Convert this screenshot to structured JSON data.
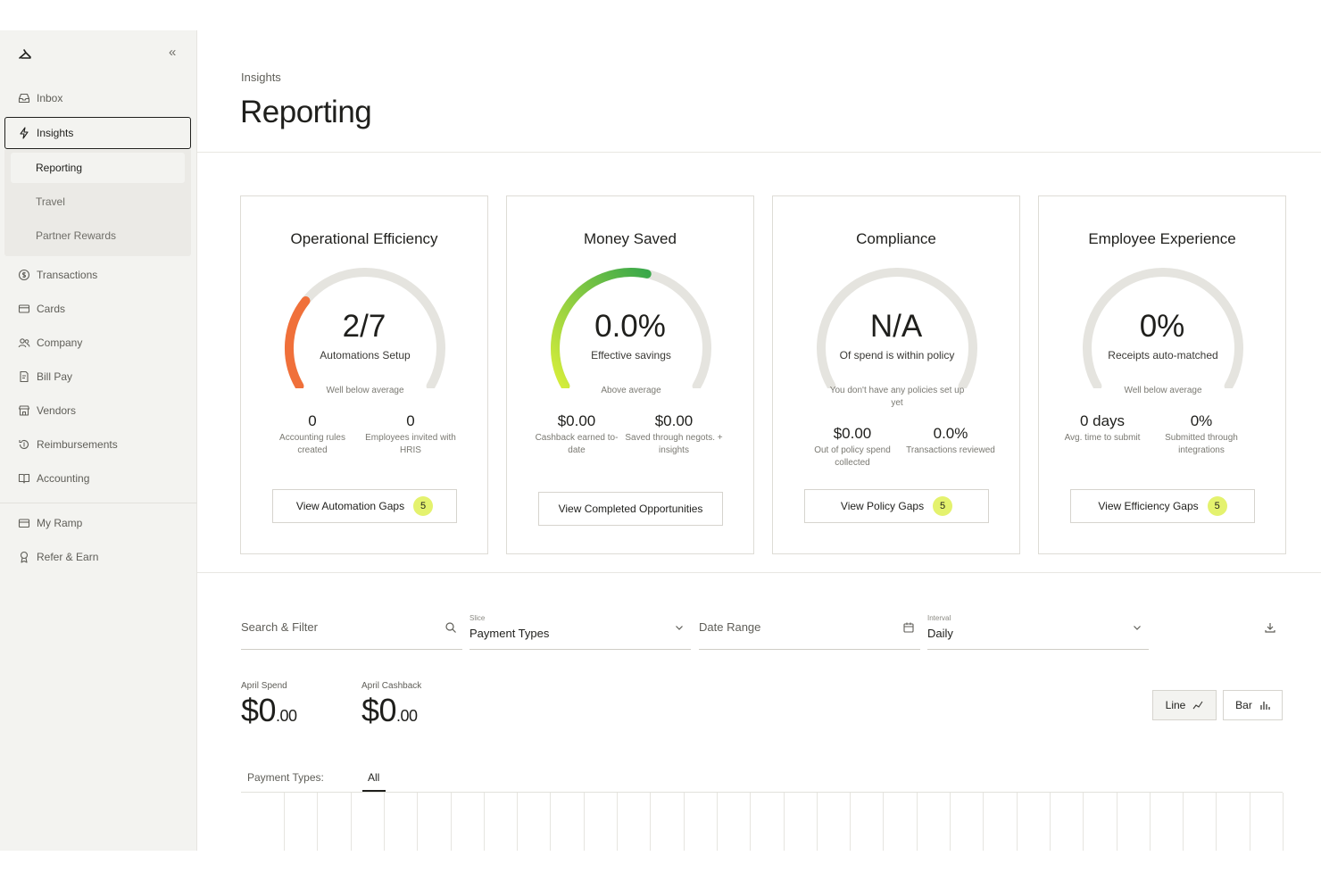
{
  "sidebar": {
    "collapse_glyph": "«",
    "items_top": [
      {
        "label": "Inbox",
        "icon": "inbox-icon"
      }
    ],
    "active": {
      "label": "Insights",
      "icon": "lightning-icon"
    },
    "sub_items": [
      "Reporting",
      "Travel",
      "Partner Rewards"
    ],
    "items": [
      {
        "label": "Transactions",
        "icon": "dollar-circle-icon"
      },
      {
        "label": "Cards",
        "icon": "card-icon"
      },
      {
        "label": "Company",
        "icon": "people-icon"
      },
      {
        "label": "Bill Pay",
        "icon": "bill-icon"
      },
      {
        "label": "Vendors",
        "icon": "store-icon"
      },
      {
        "label": "Reimbursements",
        "icon": "refund-icon"
      },
      {
        "label": "Accounting",
        "icon": "book-icon"
      }
    ],
    "items_bottom": [
      {
        "label": "My Ramp",
        "icon": "wallet-icon"
      },
      {
        "label": "Refer & Earn",
        "icon": "ribbon-icon"
      }
    ]
  },
  "header": {
    "breadcrumb": "Insights",
    "title": "Reporting"
  },
  "cards": [
    {
      "title": "Operational Efficiency",
      "value": "2/7",
      "label": "Automations Setup",
      "note": "Well below average",
      "gauge_fraction": 0.2857,
      "gauge_color": "#f0703a",
      "stats": [
        {
          "value": "0",
          "label": "Accounting rules created"
        },
        {
          "value": "0",
          "label": "Employees invited with HRIS"
        }
      ],
      "button": "View Automation Gaps",
      "badge": "5"
    },
    {
      "title": "Money Saved",
      "value": "0.0%",
      "label": "Effective savings",
      "note": "Above average",
      "gauge_fraction": 0.55,
      "gauge_color": "gradient",
      "stats": [
        {
          "value": "$0.00",
          "label": "Cashback earned to-date"
        },
        {
          "value": "$0.00",
          "label": "Saved through negots. + insights"
        }
      ],
      "button": "View Completed Opportunities",
      "badge": ""
    },
    {
      "title": "Compliance",
      "value": "N/A",
      "label": "Of spend is within policy",
      "note": "You don't have any policies set up yet",
      "gauge_fraction": 0,
      "gauge_color": "#e5e4df",
      "stats": [
        {
          "value": "$0.00",
          "label": "Out of policy spend collected"
        },
        {
          "value": "0.0%",
          "label": "Transactions reviewed"
        }
      ],
      "button": "View Policy Gaps",
      "badge": "5"
    },
    {
      "title": "Employee Experience",
      "value": "0%",
      "label": "Receipts auto-matched",
      "note": "Well below average",
      "gauge_fraction": 0,
      "gauge_color": "#e5e4df",
      "stats": [
        {
          "value": "0 days",
          "label": "Avg. time to submit"
        },
        {
          "value": "0%",
          "label": "Submitted through integrations"
        }
      ],
      "button": "View Efficiency Gaps",
      "badge": "5"
    }
  ],
  "filters": {
    "search_placeholder": "Search & Filter",
    "slice_label": "Slice",
    "slice_value": "Payment Types",
    "date_range_placeholder": "Date Range",
    "interval_label": "Interval",
    "interval_value": "Daily"
  },
  "metrics": [
    {
      "label": "April Spend",
      "major": "$0",
      "minor": ".00"
    },
    {
      "label": "April Cashback",
      "major": "$0",
      "minor": ".00"
    }
  ],
  "chart_toggle": {
    "line": "Line",
    "bar": "Bar",
    "selected": "Line"
  },
  "payment_types": {
    "label": "Payment Types:",
    "tab": "All"
  }
}
